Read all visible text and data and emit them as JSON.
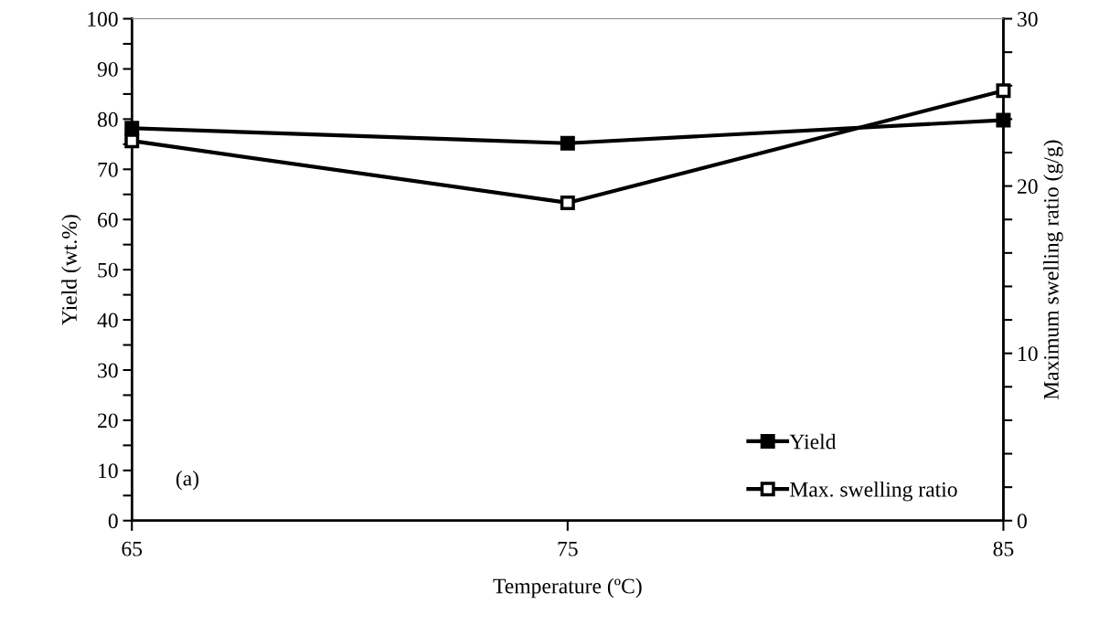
{
  "chart_data": {
    "type": "line",
    "xlabel": "Temperature (ºC)",
    "ylabel": "Yield (wt.%)",
    "y2label": "Maximum swelling ratio (g/g)",
    "x": [
      65,
      75,
      85
    ],
    "series": [
      {
        "name": "Yield",
        "color": "#000000",
        "values": [
          78.2,
          75.2,
          79.8
        ],
        "marker": "square"
      },
      {
        "name": "Max. swelling ratio",
        "color": "#000000",
        "values": [
          22.7,
          19.0,
          25.7
        ],
        "axis": "y2",
        "marker": "square"
      }
    ],
    "xlim": [
      65,
      85
    ],
    "xticks": [
      65,
      75,
      85
    ],
    "ylim": [
      0,
      100
    ],
    "yticks": [
      0,
      {
        "value": 5,
        "label": null
      },
      10,
      {
        "value": 15,
        "label": null
      },
      20,
      {
        "value": 25,
        "label": null
      },
      30,
      {
        "value": 35,
        "label": null
      },
      40,
      {
        "value": 45,
        "label": null
      },
      50,
      {
        "value": 55,
        "label": null
      },
      60,
      {
        "value": 65,
        "label": null
      },
      70,
      {
        "value": 75,
        "label": null
      },
      80,
      {
        "value": 85,
        "label": null
      },
      90,
      {
        "value": 95,
        "label": null
      },
      100
    ],
    "y2lim": [
      0,
      30
    ],
    "y2ticks": [
      0,
      {
        "value": 2,
        "label": null
      },
      {
        "value": 4,
        "label": null
      },
      {
        "value": 6,
        "label": null
      },
      {
        "value": 8,
        "label": null
      },
      10,
      {
        "value": 12,
        "label": null
      },
      {
        "value": 14,
        "label": null
      },
      {
        "value": 16,
        "label": null
      },
      {
        "value": 18,
        "label": null
      },
      20,
      {
        "value": 22,
        "label": null
      },
      {
        "value": 24,
        "label": null
      },
      {
        "value": 26,
        "label": null
      },
      {
        "value": 28,
        "label": null
      },
      30
    ],
    "annotations": [
      "(a)"
    ],
    "legend": "bottom right",
    "grid": false,
    "line_style": "solid"
  }
}
